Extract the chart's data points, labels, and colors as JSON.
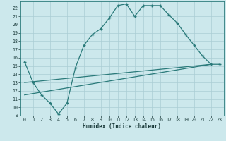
{
  "xlabel": "Humidex (Indice chaleur)",
  "bg_color": "#cce8ec",
  "grid_color": "#aacdd4",
  "line_color": "#2a7a7a",
  "xlim": [
    -0.5,
    23.5
  ],
  "ylim": [
    9,
    22.8
  ],
  "xticks": [
    0,
    1,
    2,
    3,
    4,
    5,
    6,
    7,
    8,
    9,
    10,
    11,
    12,
    13,
    14,
    15,
    16,
    17,
    18,
    19,
    20,
    21,
    22,
    23
  ],
  "yticks": [
    9,
    10,
    11,
    12,
    13,
    14,
    15,
    16,
    17,
    18,
    19,
    20,
    21,
    22
  ],
  "line1_x": [
    0,
    1,
    2,
    3,
    4,
    5,
    6,
    7,
    8,
    9,
    10,
    11,
    12,
    13,
    14,
    15,
    16,
    17,
    18,
    19,
    20,
    21,
    22,
    23
  ],
  "line1_y": [
    15.5,
    13.0,
    11.5,
    10.5,
    9.2,
    10.5,
    14.8,
    17.5,
    18.8,
    19.5,
    20.8,
    22.3,
    22.5,
    21.0,
    22.3,
    22.3,
    22.3,
    21.2,
    20.2,
    18.8,
    17.5,
    16.2,
    15.2,
    15.2
  ],
  "line2_x": [
    0,
    22
  ],
  "line2_y": [
    13.0,
    15.2
  ],
  "line3_x": [
    0,
    22
  ],
  "line3_y": [
    11.5,
    15.2
  ]
}
